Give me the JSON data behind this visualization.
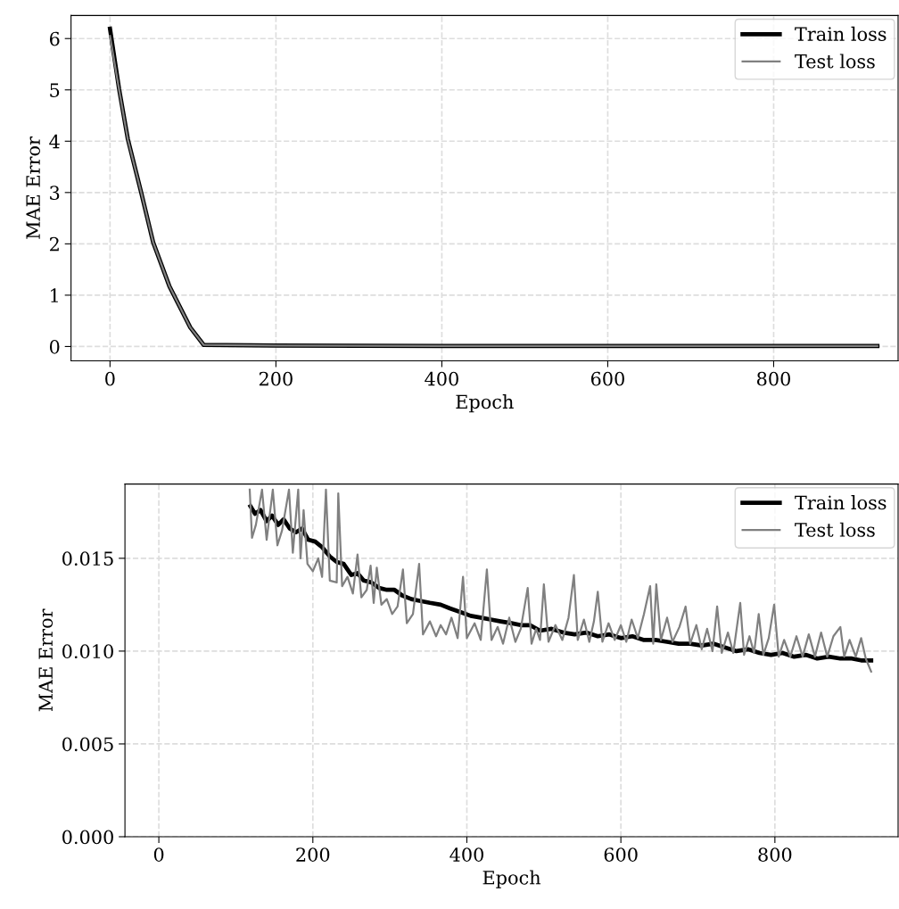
{
  "chart_data": [
    {
      "type": "line",
      "xlabel": "Epoch",
      "ylabel": "MAE Error",
      "xlim": [
        -47,
        950
      ],
      "ylim": [
        -0.28,
        6.45
      ],
      "xticks": [
        0,
        200,
        400,
        600,
        800
      ],
      "yticks": [
        0,
        1,
        2,
        3,
        4,
        5,
        6
      ],
      "grid": true,
      "legend": "top right",
      "line_style": "solid",
      "marker": "none",
      "series": [
        {
          "name": "Train loss",
          "color": "#000000",
          "x": [
            0,
            11,
            21.5,
            37.6,
            52,
            71.7,
            96.8,
            113,
            200,
            400,
            600,
            800,
            925
          ],
          "values": [
            6.19,
            5.01,
            4.04,
            3.0,
            2.03,
            1.17,
            0.37,
            0.03,
            0.02,
            0.01,
            0.01,
            0.01,
            0.01
          ]
        },
        {
          "name": "Test loss",
          "color": "#808080",
          "x": [
            0,
            11,
            21.5,
            37.6,
            52,
            71.7,
            96.8,
            113,
            200,
            400,
            600,
            800,
            925
          ],
          "values": [
            6.05,
            5.0,
            4.03,
            3.0,
            2.03,
            1.17,
            0.37,
            0.03,
            0.02,
            0.01,
            0.01,
            0.01,
            0.01
          ]
        }
      ]
    },
    {
      "type": "line",
      "xlabel": "Epoch",
      "ylabel": "MAE Error",
      "xlim": [
        -44,
        960
      ],
      "ylim": [
        0,
        0.019
      ],
      "xticks": [
        0,
        200,
        400,
        600,
        800
      ],
      "yticks": [
        {
          "value": 0,
          "label": "0.000"
        },
        {
          "value": 0.005,
          "label": "0.005"
        },
        {
          "value": 0.01,
          "label": "0.010"
        },
        {
          "value": 0.015,
          "label": "0.015"
        }
      ],
      "grid": true,
      "legend": "top right",
      "line_style": "solid",
      "marker": "none",
      "series": [
        {
          "name": "Train loss",
          "color": "#000000",
          "x": [
            119,
            125,
            132,
            140,
            147,
            155,
            162,
            170,
            178,
            186,
            194,
            203,
            212,
            222,
            231,
            240,
            250,
            258,
            266,
            276,
            286,
            296,
            306,
            316,
            328,
            340,
            352,
            366,
            378,
            392,
            405,
            418,
            431,
            444,
            458,
            470,
            482,
            495,
            510,
            525,
            540,
            555,
            570,
            585,
            600,
            615,
            630,
            645,
            660,
            675,
            690,
            705,
            720,
            735,
            750,
            765,
            780,
            795,
            810,
            825,
            840,
            855,
            870,
            885,
            900,
            912,
            925
          ],
          "values": [
            0.0178,
            0.0174,
            0.0176,
            0.017,
            0.0173,
            0.0168,
            0.0171,
            0.0166,
            0.0164,
            0.0166,
            0.016,
            0.0159,
            0.0156,
            0.0151,
            0.0148,
            0.0147,
            0.0141,
            0.0142,
            0.0138,
            0.0137,
            0.0134,
            0.0133,
            0.0133,
            0.013,
            0.0128,
            0.0127,
            0.0126,
            0.0125,
            0.0123,
            0.0121,
            0.0119,
            0.0118,
            0.0117,
            0.0116,
            0.0115,
            0.0114,
            0.0114,
            0.0111,
            0.0112,
            0.011,
            0.0109,
            0.011,
            0.0108,
            0.0109,
            0.0107,
            0.0108,
            0.0106,
            0.0106,
            0.0105,
            0.0104,
            0.0104,
            0.0103,
            0.0104,
            0.0102,
            0.01,
            0.0101,
            0.0099,
            0.0098,
            0.0099,
            0.0097,
            0.0098,
            0.0096,
            0.0097,
            0.0096,
            0.0096,
            0.0095,
            0.0095
          ]
        },
        {
          "name": "Test loss",
          "color": "#808080",
          "x": [
            118,
            121,
            126,
            134,
            140,
            148,
            154,
            160,
            169,
            174,
            181,
            184,
            188,
            193,
            200,
            207,
            212,
            217,
            222,
            231,
            233,
            238,
            245,
            252,
            258,
            263,
            270,
            275,
            279,
            283,
            289,
            296,
            303,
            310,
            317,
            322,
            330,
            338,
            343,
            352,
            360,
            366,
            373,
            380,
            388,
            395,
            400,
            410,
            418,
            426,
            432,
            440,
            447,
            455,
            463,
            470,
            479,
            484,
            490,
            495,
            500,
            506,
            515,
            524,
            532,
            539,
            544,
            552,
            559,
            565,
            570,
            576,
            584,
            592,
            600,
            607,
            614,
            622,
            630,
            638,
            642,
            646,
            652,
            660,
            667,
            676,
            684,
            690,
            698,
            705,
            712,
            719,
            725,
            731,
            739,
            746,
            755,
            760,
            767,
            773,
            779,
            785,
            792,
            799,
            805,
            812,
            820,
            828,
            836,
            844,
            852,
            860,
            868,
            876,
            885,
            890,
            897,
            905,
            912,
            918,
            925
          ],
          "values": [
            0.0187,
            0.0161,
            0.0168,
            0.0187,
            0.016,
            0.0187,
            0.0157,
            0.0165,
            0.0187,
            0.0153,
            0.0187,
            0.015,
            0.0176,
            0.0147,
            0.0143,
            0.015,
            0.014,
            0.0187,
            0.0138,
            0.0137,
            0.0185,
            0.0135,
            0.014,
            0.0131,
            0.0152,
            0.0129,
            0.0133,
            0.0146,
            0.0126,
            0.0145,
            0.0125,
            0.0128,
            0.012,
            0.0124,
            0.0144,
            0.0115,
            0.012,
            0.0147,
            0.0109,
            0.0116,
            0.0108,
            0.0114,
            0.0109,
            0.0118,
            0.0107,
            0.014,
            0.0107,
            0.0115,
            0.0106,
            0.0144,
            0.0106,
            0.0113,
            0.0104,
            0.0118,
            0.0105,
            0.0112,
            0.0134,
            0.0104,
            0.0112,
            0.0106,
            0.0136,
            0.0105,
            0.0114,
            0.0106,
            0.0118,
            0.0141,
            0.0106,
            0.0117,
            0.0105,
            0.0116,
            0.0132,
            0.0105,
            0.0115,
            0.0106,
            0.0114,
            0.0105,
            0.0117,
            0.0107,
            0.012,
            0.0135,
            0.0104,
            0.0136,
            0.0106,
            0.0118,
            0.0105,
            0.0113,
            0.0124,
            0.0104,
            0.0114,
            0.0101,
            0.0112,
            0.01,
            0.0124,
            0.0099,
            0.011,
            0.0099,
            0.0126,
            0.0098,
            0.0108,
            0.0099,
            0.012,
            0.0098,
            0.0107,
            0.0125,
            0.0097,
            0.0106,
            0.0097,
            0.0108,
            0.0097,
            0.0109,
            0.0097,
            0.011,
            0.0097,
            0.0108,
            0.0113,
            0.0097,
            0.0106,
            0.0097,
            0.0107,
            0.0096,
            0.0089
          ]
        }
      ]
    }
  ]
}
